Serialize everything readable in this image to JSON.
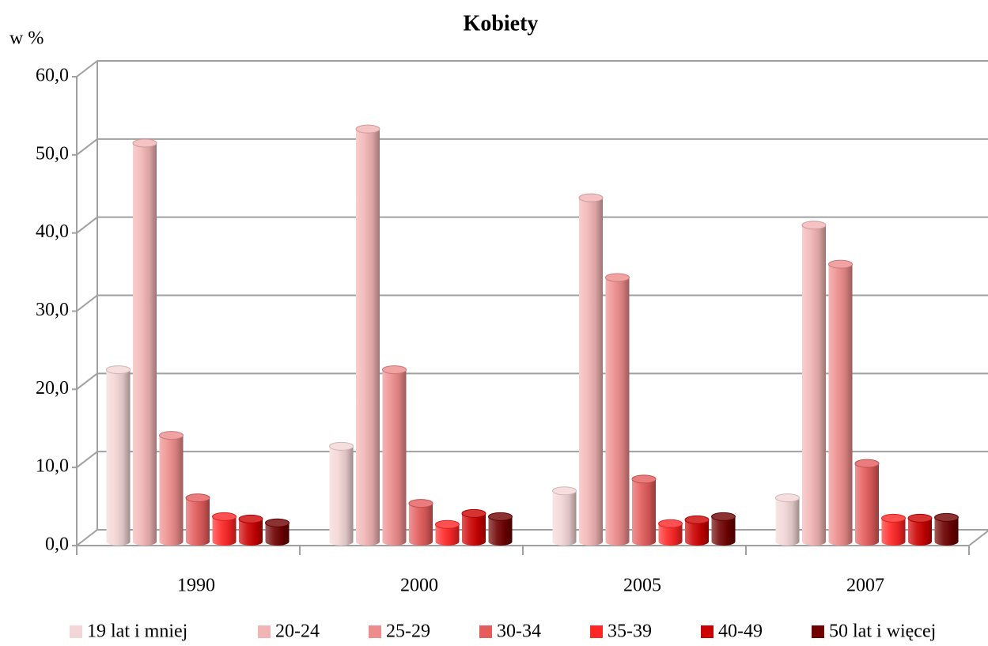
{
  "chart_data": {
    "type": "bar3d",
    "title": "Kobiety",
    "y_axis_label": "w %",
    "categories": [
      "1990",
      "2000",
      "2005",
      "2007"
    ],
    "series": [
      {
        "name": "19 lat i mniej",
        "color": "#f4d6d6",
        "values": [
          22.0,
          12.2,
          6.5,
          5.6
        ]
      },
      {
        "name": "20-24",
        "color": "#f2b4b4",
        "values": [
          51.0,
          52.8,
          44.0,
          40.5
        ]
      },
      {
        "name": "25-29",
        "color": "#ee8c8c",
        "values": [
          13.6,
          22.0,
          33.8,
          35.5
        ]
      },
      {
        "name": "30-34",
        "color": "#e45c5c",
        "values": [
          5.6,
          4.9,
          8.0,
          10.0
        ]
      },
      {
        "name": "35-39",
        "color": "#ff2626",
        "values": [
          3.2,
          2.2,
          2.3,
          3.0
        ]
      },
      {
        "name": "40-49",
        "color": "#cc0000",
        "values": [
          2.9,
          3.6,
          2.8,
          3.0
        ]
      },
      {
        "name": "50 lat i więcej",
        "color": "#6e0000",
        "values": [
          2.4,
          3.2,
          3.2,
          3.1
        ]
      }
    ],
    "ylim": [
      0,
      60
    ],
    "yticks": [
      {
        "value": 0,
        "label": "0,0"
      },
      {
        "value": 10,
        "label": "10,0"
      },
      {
        "value": 20,
        "label": "20,0"
      },
      {
        "value": 30,
        "label": "30,0"
      },
      {
        "value": 40,
        "label": "40,0"
      },
      {
        "value": 50,
        "label": "50,0"
      },
      {
        "value": 60,
        "label": "60,0"
      }
    ],
    "grid": true,
    "legend": "bottom"
  }
}
